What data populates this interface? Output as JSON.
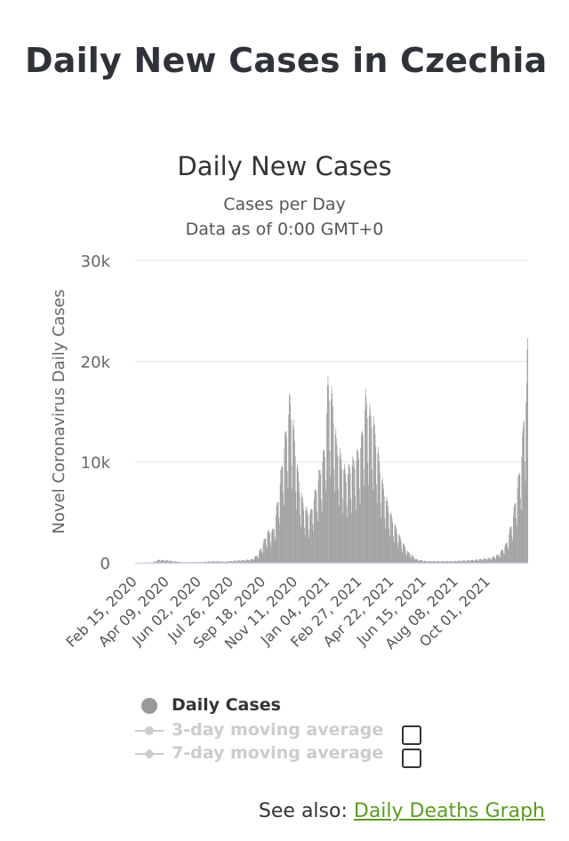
{
  "page": {
    "title": "Daily New Cases in Czechia"
  },
  "chart": {
    "title": "Daily New Cases",
    "subtitle_line1": "Cases per Day",
    "subtitle_line2": "Data as of 0:00 GMT+0"
  },
  "legend": {
    "daily_cases": "Daily Cases",
    "ma3": "3-day moving average",
    "ma7": "7-day moving average"
  },
  "footer": {
    "see_also_prefix": "See also: ",
    "link_text": "Daily Deaths Graph"
  },
  "colors": {
    "bar": "#999999",
    "grid": "#e6e6e6",
    "baseline": "#ccd6eb",
    "legend_inactive": "#cccccc",
    "link": "#5b9b23"
  },
  "chart_data": {
    "type": "bar",
    "title": "Daily New Cases",
    "subtitle": [
      "Cases per Day",
      "Data as of 0:00 GMT+0"
    ],
    "ylabel": "Novel Coronavirus Daily Cases",
    "ylim": [
      0,
      30000
    ],
    "yticks": [
      0,
      10000,
      20000,
      30000
    ],
    "ytick_labels": [
      "0",
      "10k",
      "20k",
      "30k"
    ],
    "xtick_labels": [
      "Feb 15, 2020",
      "Apr 09, 2020",
      "Jun 02, 2020",
      "Jul 26, 2020",
      "Sep 18, 2020",
      "Nov 11, 2020",
      "Jan 04, 2021",
      "Feb 27, 2021",
      "Apr 22, 2021",
      "Jun 15, 2021",
      "Aug 08, 2021",
      "Oct 01, 2021"
    ],
    "xtick_interval_days": 53,
    "x_start": "2020-02-15",
    "grid": true,
    "legend_position": "bottom",
    "series": [
      {
        "name": "Daily Cases",
        "date_start": "2020-02-15",
        "date_end": "2021-11-24",
        "keypoints": [
          [
            "2020-02-15",
            0
          ],
          [
            "2020-03-01",
            0
          ],
          [
            "2020-03-15",
            50
          ],
          [
            "2020-03-25",
            280
          ],
          [
            "2020-04-10",
            200
          ],
          [
            "2020-05-01",
            50
          ],
          [
            "2020-06-01",
            60
          ],
          [
            "2020-06-25",
            150
          ],
          [
            "2020-07-10",
            100
          ],
          [
            "2020-08-01",
            200
          ],
          [
            "2020-08-25",
            300
          ],
          [
            "2020-09-05",
            800
          ],
          [
            "2020-09-12",
            1700
          ],
          [
            "2020-09-20",
            2800
          ],
          [
            "2020-09-30",
            3000
          ],
          [
            "2020-10-08",
            6000
          ],
          [
            "2020-10-15",
            9500
          ],
          [
            "2020-10-22",
            12500
          ],
          [
            "2020-10-27",
            15000
          ],
          [
            "2020-11-01",
            13000
          ],
          [
            "2020-11-06",
            10000
          ],
          [
            "2020-11-12",
            7000
          ],
          [
            "2020-11-20",
            5000
          ],
          [
            "2020-11-30",
            4500
          ],
          [
            "2020-12-08",
            6500
          ],
          [
            "2020-12-18",
            9000
          ],
          [
            "2020-12-24",
            10500
          ],
          [
            "2020-12-29",
            16500
          ],
          [
            "2021-01-05",
            15000
          ],
          [
            "2021-01-12",
            11000
          ],
          [
            "2021-01-20",
            9500
          ],
          [
            "2021-01-28",
            8000
          ],
          [
            "2021-02-05",
            9000
          ],
          [
            "2021-02-13",
            9500
          ],
          [
            "2021-02-22",
            11000
          ],
          [
            "2021-03-01",
            15000
          ],
          [
            "2021-03-06",
            14000
          ],
          [
            "2021-03-14",
            13000
          ],
          [
            "2021-03-22",
            10000
          ],
          [
            "2021-03-30",
            7000
          ],
          [
            "2021-04-08",
            5000
          ],
          [
            "2021-04-18",
            3500
          ],
          [
            "2021-04-28",
            2200
          ],
          [
            "2021-05-10",
            1000
          ],
          [
            "2021-05-25",
            300
          ],
          [
            "2021-06-10",
            150
          ],
          [
            "2021-07-01",
            150
          ],
          [
            "2021-07-20",
            150
          ],
          [
            "2021-08-10",
            200
          ],
          [
            "2021-08-25",
            250
          ],
          [
            "2021-09-10",
            350
          ],
          [
            "2021-09-25",
            450
          ],
          [
            "2021-10-08",
            800
          ],
          [
            "2021-10-20",
            1800
          ],
          [
            "2021-10-30",
            4000
          ],
          [
            "2021-11-07",
            7000
          ],
          [
            "2021-11-14",
            10000
          ],
          [
            "2021-11-18",
            14000
          ],
          [
            "2021-11-22",
            15500
          ],
          [
            "2021-11-24",
            22300
          ]
        ]
      },
      {
        "name": "3-day moving average",
        "visible": false
      },
      {
        "name": "7-day moving average",
        "visible": false
      }
    ]
  }
}
